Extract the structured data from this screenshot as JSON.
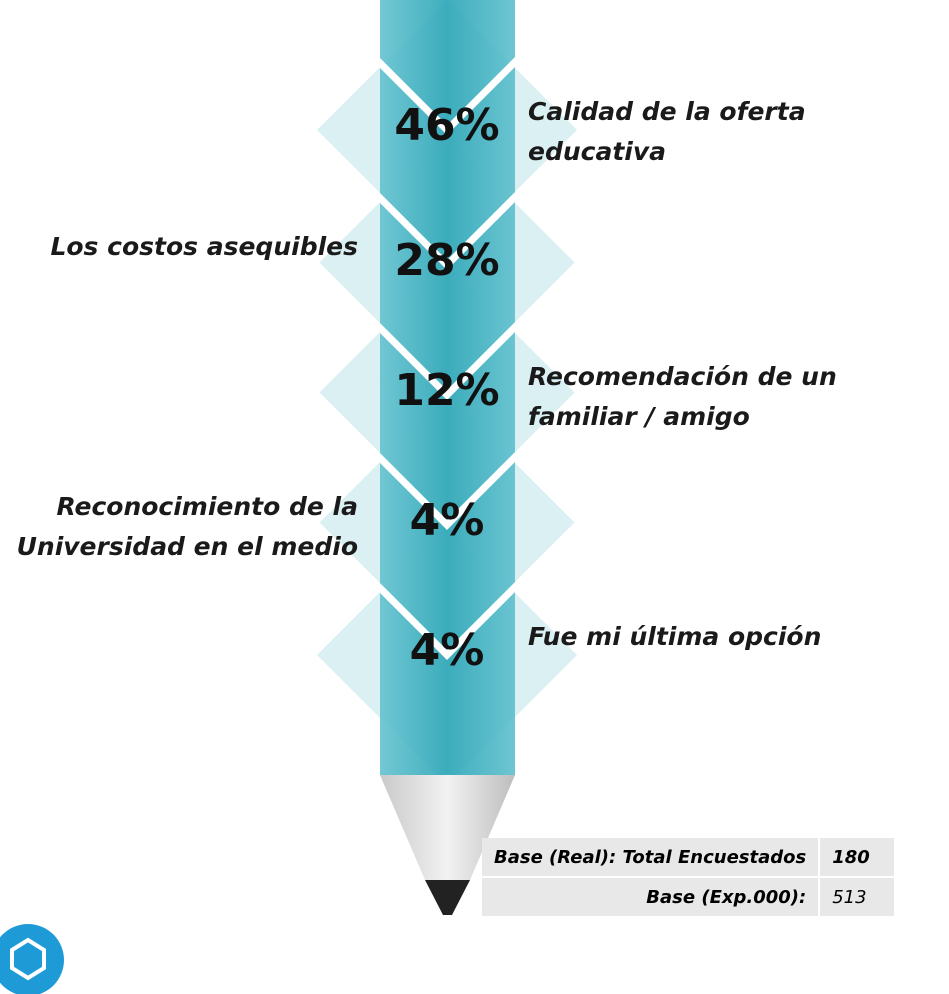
{
  "items": [
    {
      "percent": "46%",
      "label": "Calidad de la oferta educativa"
    },
    {
      "percent": "28%",
      "label": "Los costos asequibles"
    },
    {
      "percent": "12%",
      "label": "Recomendación de un familiar / amigo"
    },
    {
      "percent": "4%",
      "label": "Reconocimiento de la Universidad en el medio"
    },
    {
      "percent": "4%",
      "label": "Fue mi última opción"
    }
  ],
  "table": {
    "rows": [
      [
        "Base (Real): Total Encuestados",
        "180"
      ],
      [
        "Base (Exp.000):",
        "513"
      ]
    ]
  }
}
